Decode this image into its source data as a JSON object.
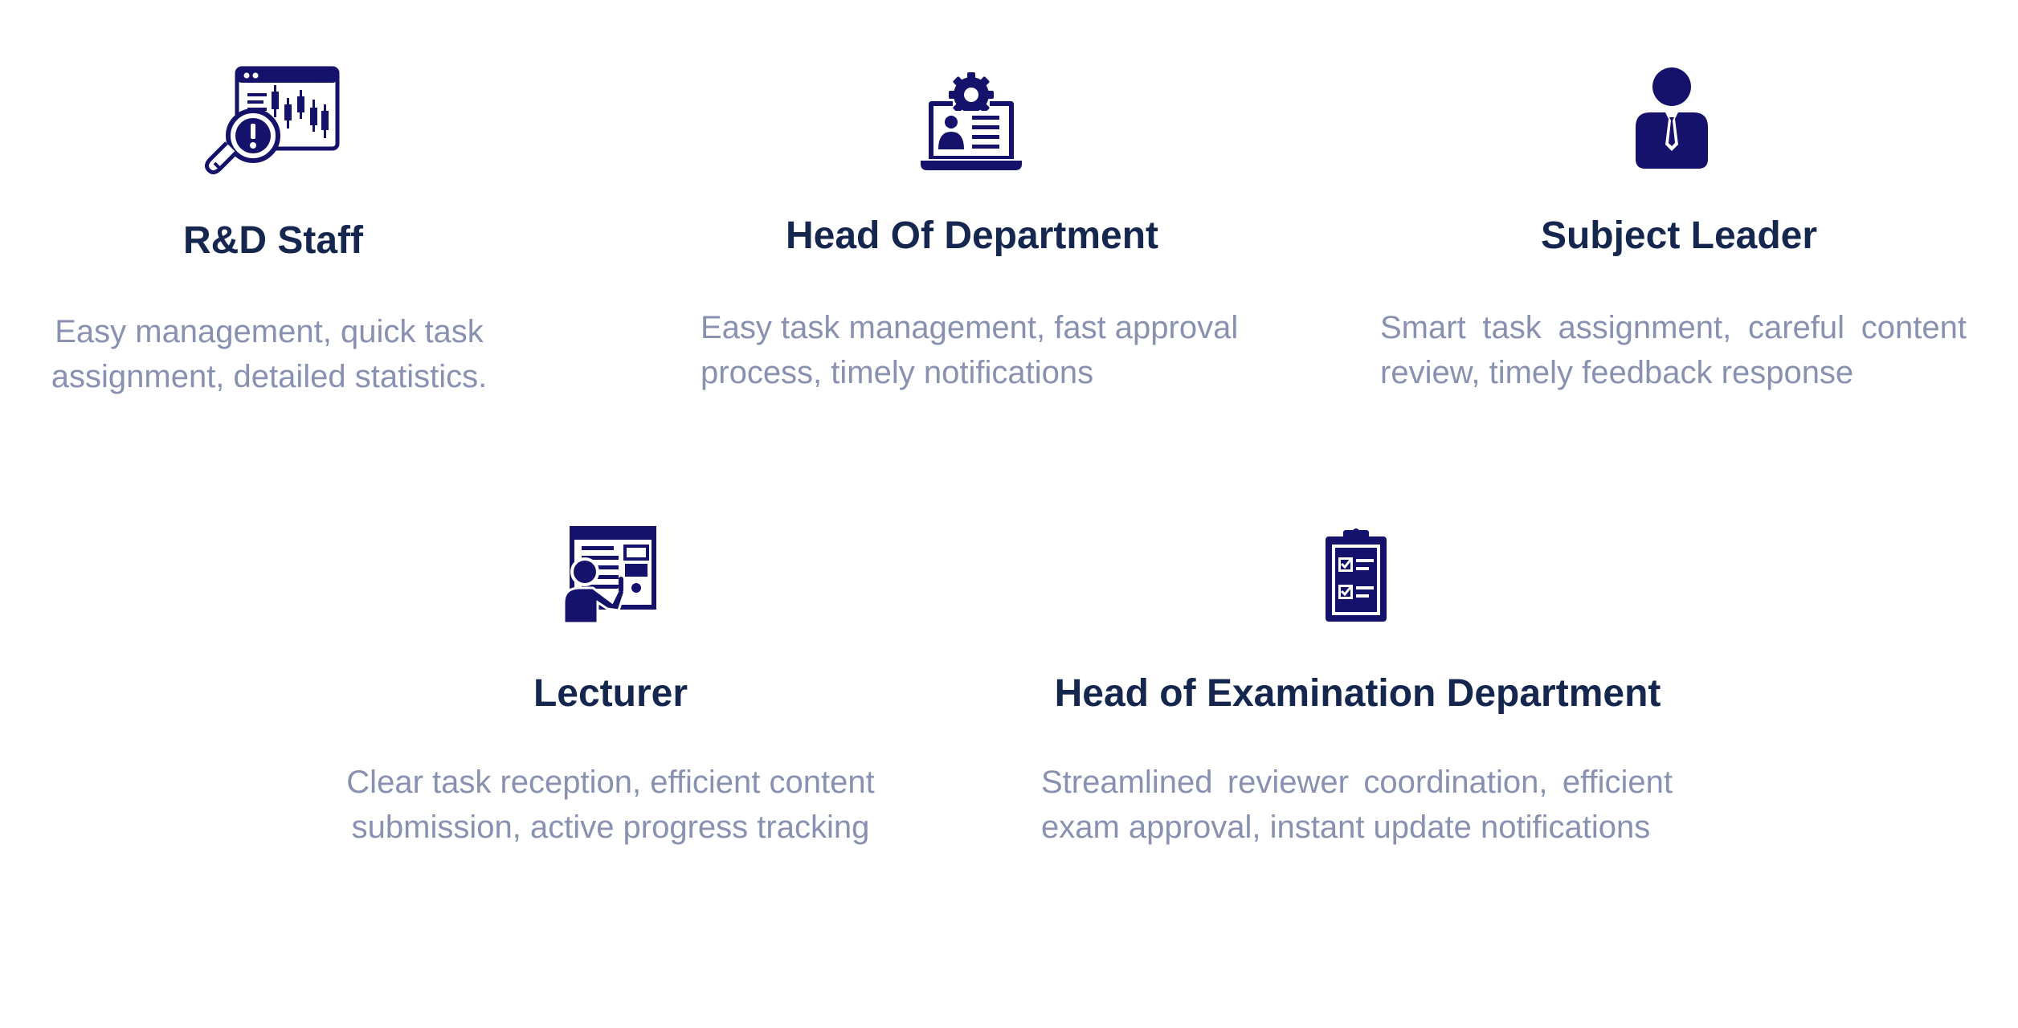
{
  "colors": {
    "icon": "#14126a",
    "title": "#15264f",
    "description": "#8891b0",
    "background": "#ffffff"
  },
  "roles": [
    {
      "icon": "candlestick-chart-magnifier-icon",
      "title": "R&D Staff",
      "description": "Easy management, quick task assignment, detailed statistics."
    },
    {
      "icon": "laptop-gear-profile-icon",
      "title": "Head Of Department",
      "description": "Easy task management, fast approval process, timely notifications"
    },
    {
      "icon": "person-tie-icon",
      "title": "Subject Leader",
      "description": "Smart task assignment, careful content review, timely feedback response"
    },
    {
      "icon": "presenter-board-icon",
      "title": "Lecturer",
      "description": "Clear task reception, efficient content submission, active progress tracking"
    },
    {
      "icon": "clipboard-checklist-icon",
      "title": "Head of Examination Department",
      "description": "Streamlined reviewer coordination, efficient exam approval, instant update notifications"
    }
  ]
}
